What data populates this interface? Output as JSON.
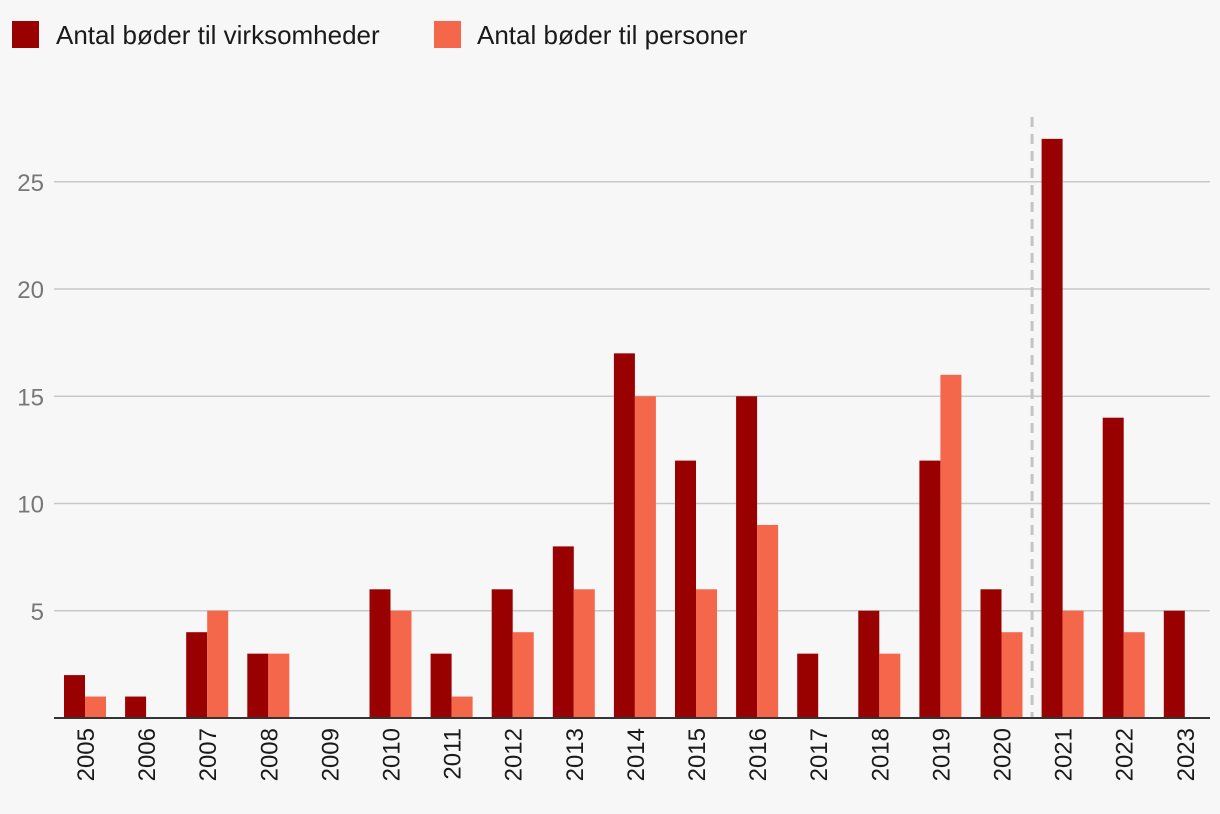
{
  "chart_data": {
    "type": "bar",
    "categories": [
      "2005",
      "2006",
      "2007",
      "2008",
      "2009",
      "2010",
      "2011",
      "2012",
      "2013",
      "2014",
      "2015",
      "2016",
      "2017",
      "2018",
      "2019",
      "2020",
      "2021",
      "2022",
      "2023"
    ],
    "series": [
      {
        "name": "Antal bøder til virksomheder",
        "color": "#990000",
        "values": [
          2,
          1,
          4,
          3,
          0,
          6,
          3,
          6,
          8,
          17,
          12,
          15,
          3,
          5,
          12,
          6,
          27,
          14,
          5
        ]
      },
      {
        "name": "Antal bøder til personer",
        "color": "#f4674a",
        "values": [
          1,
          0,
          5,
          3,
          0,
          5,
          1,
          4,
          6,
          15,
          6,
          9,
          0,
          3,
          16,
          4,
          5,
          4,
          0
        ]
      }
    ],
    "ylim": [
      0,
      28
    ],
    "yticks": [
      5,
      10,
      15,
      20,
      25
    ],
    "grid": true,
    "legend": "top-left",
    "xlabel": "",
    "ylabel": "",
    "reference_line": {
      "between": [
        "2020",
        "2021"
      ],
      "style": "dashed",
      "color": "#c4c4c4"
    }
  }
}
